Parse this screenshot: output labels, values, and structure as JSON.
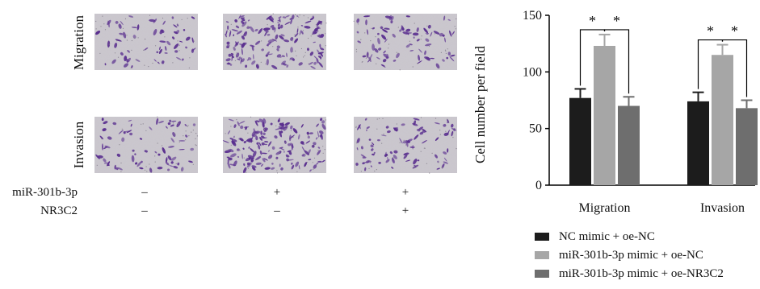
{
  "panel_left": {
    "row_labels": [
      "Migration",
      "Invasion"
    ],
    "conditions": [
      {
        "label": "miR-301b-3p",
        "values": [
          "–",
          "+",
          "+"
        ]
      },
      {
        "label": "NR3C2",
        "values": [
          "–",
          "–",
          "+"
        ]
      }
    ],
    "stain_color": "#5a2f8f",
    "background_color": "#c9c5cd"
  },
  "chart_data": {
    "type": "bar",
    "categories": [
      "Migration",
      "Invasion"
    ],
    "series": [
      {
        "name": "NC mimic + oe-NC",
        "values": [
          77,
          74
        ],
        "errors": [
          8,
          8
        ],
        "color": "#1c1c1c"
      },
      {
        "name": "miR-301b-3p mimic + oe-NC",
        "values": [
          123,
          115
        ],
        "errors": [
          10,
          9
        ],
        "color": "#a6a6a6"
      },
      {
        "name": "miR-301b-3p mimic + oe-NR3C2",
        "values": [
          70,
          68
        ],
        "errors": [
          8,
          7
        ],
        "color": "#6e6e6e"
      }
    ],
    "ylabel": "Cell number per field",
    "xlabel": "",
    "ylim": [
      0,
      150
    ],
    "yticks": [
      0,
      50,
      100,
      150
    ],
    "significance_marker": "*",
    "legend_position": "bottom"
  }
}
